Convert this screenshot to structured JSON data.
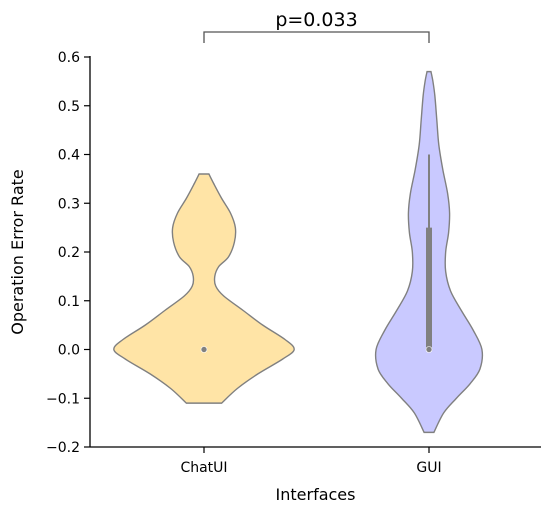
{
  "chart_data": {
    "type": "violin",
    "title": "",
    "xlabel": "Interfaces",
    "ylabel": "Operation Error Rate",
    "ylim": [
      -0.2,
      0.6
    ],
    "yticks": [
      -0.2,
      -0.1,
      0.0,
      0.1,
      0.2,
      0.3,
      0.4,
      0.5,
      0.6
    ],
    "ytick_labels": [
      "−0.2",
      "−0.1",
      "0.0",
      "0.1",
      "0.2",
      "0.3",
      "0.4",
      "0.5",
      "0.6"
    ],
    "categories": [
      "ChatUI",
      "GUI"
    ],
    "grid": false,
    "annotation": {
      "text": "p=0.033",
      "between": [
        "ChatUI",
        "GUI"
      ]
    },
    "series": [
      {
        "category": "ChatUI",
        "color": "#FFE4A6",
        "edge_color": "#808080",
        "density_range": [
          -0.11,
          0.36
        ],
        "density_profile": [
          [
            -0.11,
            0.18
          ],
          [
            -0.08,
            0.34
          ],
          [
            -0.05,
            0.55
          ],
          [
            -0.02,
            0.8
          ],
          [
            0.0,
            0.92
          ],
          [
            0.02,
            0.83
          ],
          [
            0.05,
            0.6
          ],
          [
            0.08,
            0.4
          ],
          [
            0.11,
            0.2
          ],
          [
            0.13,
            0.12
          ],
          [
            0.15,
            0.11
          ],
          [
            0.17,
            0.15
          ],
          [
            0.19,
            0.25
          ],
          [
            0.22,
            0.31
          ],
          [
            0.25,
            0.32
          ],
          [
            0.28,
            0.27
          ],
          [
            0.31,
            0.18
          ],
          [
            0.34,
            0.1
          ],
          [
            0.36,
            0.05
          ]
        ],
        "median": 0.0,
        "q1": 0.0,
        "q3": 0.0,
        "whisker_low": 0.0,
        "whisker_high": 0.0
      },
      {
        "category": "GUI",
        "color": "#C9C9FF",
        "edge_color": "#808080",
        "density_range": [
          -0.17,
          0.57
        ],
        "density_profile": [
          [
            -0.17,
            0.05
          ],
          [
            -0.13,
            0.15
          ],
          [
            -0.1,
            0.28
          ],
          [
            -0.07,
            0.42
          ],
          [
            -0.04,
            0.52
          ],
          [
            0.0,
            0.54
          ],
          [
            0.04,
            0.45
          ],
          [
            0.08,
            0.33
          ],
          [
            0.12,
            0.22
          ],
          [
            0.16,
            0.17
          ],
          [
            0.2,
            0.17
          ],
          [
            0.24,
            0.2
          ],
          [
            0.28,
            0.21
          ],
          [
            0.32,
            0.19
          ],
          [
            0.37,
            0.14
          ],
          [
            0.42,
            0.1
          ],
          [
            0.47,
            0.08
          ],
          [
            0.52,
            0.06
          ],
          [
            0.55,
            0.04
          ],
          [
            0.57,
            0.02
          ]
        ],
        "median": 0.0,
        "q1": 0.0,
        "q3": 0.25,
        "whisker_low": 0.0,
        "whisker_high": 0.4
      }
    ]
  }
}
